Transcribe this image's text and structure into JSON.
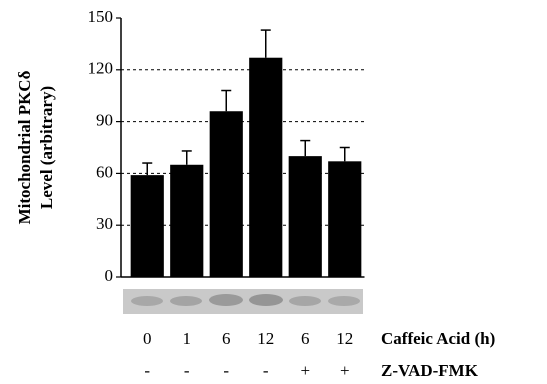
{
  "chart_data": {
    "type": "bar",
    "ylabel": [
      "Mitochondrial PKCδ",
      "Level (arbitrary)"
    ],
    "categories": [
      "0",
      "1",
      "6",
      "12",
      "6",
      "12"
    ],
    "category_label": "Caffeic Acid (h)",
    "values": [
      59,
      65,
      96,
      127,
      70,
      67
    ],
    "errors": [
      7,
      8,
      12,
      16,
      9,
      8
    ],
    "conditions": [
      {
        "name": "Z-VAD-FMK",
        "values": [
          "-",
          "-",
          "-",
          "-",
          "+",
          "+"
        ]
      }
    ],
    "color": "#000000",
    "ylim": [
      0,
      150
    ],
    "yticks": [
      0,
      30,
      60,
      90,
      120,
      150
    ],
    "grid": true
  }
}
